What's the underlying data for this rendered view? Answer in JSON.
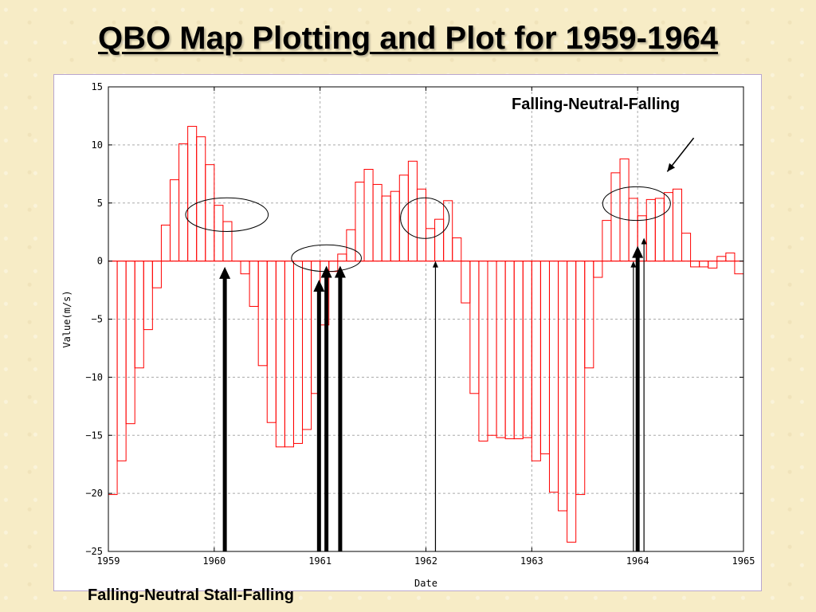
{
  "slide": {
    "title": "QBO Map Plotting and Plot for 1959-1964"
  },
  "annotations": {
    "top_caption": "Falling-Neutral-Falling",
    "bottom_caption": "Falling-Neutral Stall-Falling"
  },
  "chart_data": {
    "type": "bar",
    "title": "",
    "xlabel": "Date",
    "ylabel": "Value(m/s)",
    "x_start": 1959.0,
    "x_step": 0.0833333,
    "xlim": [
      1959,
      1965
    ],
    "ylim": [
      -25,
      15
    ],
    "x_ticks": [
      1959,
      1960,
      1961,
      1962,
      1963,
      1964,
      1965
    ],
    "y_ticks": [
      -25,
      -20,
      -15,
      -10,
      -5,
      0,
      5,
      10,
      15
    ],
    "grid": true,
    "bar_color": "#ff0000",
    "values": [
      -20.1,
      -17.2,
      -14.0,
      -9.2,
      -5.9,
      -2.3,
      3.1,
      7.0,
      10.1,
      11.6,
      10.7,
      8.3,
      4.8,
      3.4,
      0.0,
      -1.1,
      -3.9,
      -9.0,
      -13.9,
      -16.0,
      -16.0,
      -15.7,
      -14.5,
      -11.4,
      -5.5,
      -0.9,
      0.6,
      2.7,
      6.8,
      7.9,
      6.6,
      5.6,
      6.0,
      7.4,
      8.6,
      6.2,
      2.8,
      3.6,
      5.2,
      2.0,
      -3.6,
      -11.4,
      -15.5,
      -15.0,
      -15.2,
      -15.3,
      -15.3,
      -15.2,
      -17.2,
      -16.6,
      -19.9,
      -21.5,
      -24.2,
      -20.1,
      -9.2,
      -1.4,
      3.5,
      7.6,
      8.8,
      5.4,
      3.9,
      5.3,
      5.4,
      5.9,
      6.2,
      2.4,
      -0.5,
      -0.5,
      -0.6,
      0.4,
      0.7,
      -1.1
    ]
  },
  "markers": {
    "arrows": [
      {
        "x": 1960.1,
        "y_from": -25,
        "y_to": -0.5,
        "weight": "bold"
      },
      {
        "x": 1960.99,
        "y_from": -25,
        "y_to": -1.6,
        "weight": "bold"
      },
      {
        "x": 1961.06,
        "y_from": -25,
        "y_to": -0.4,
        "weight": "bold"
      },
      {
        "x": 1961.19,
        "y_from": -25,
        "y_to": -0.4,
        "weight": "bold"
      },
      {
        "x": 1962.09,
        "y_from": -25,
        "y_to": 0.0,
        "weight": "thin"
      },
      {
        "x": 1963.96,
        "y_from": -25,
        "y_to": 0.0,
        "weight": "thin"
      },
      {
        "x": 1964.0,
        "y_from": -25,
        "y_to": 1.3,
        "weight": "bold"
      },
      {
        "x": 1964.06,
        "y_from": -25,
        "y_to": 2.0,
        "weight": "thin"
      }
    ],
    "ellipses": [
      {
        "cx": 1960.12,
        "cy": 4.0,
        "rx": 0.39,
        "ry": 1.45
      },
      {
        "cx": 1961.06,
        "cy": 0.25,
        "rx": 0.33,
        "ry": 1.15
      },
      {
        "cx": 1961.99,
        "cy": 3.7,
        "rx": 0.23,
        "ry": 1.75
      },
      {
        "cx": 1963.99,
        "cy": 4.95,
        "rx": 0.32,
        "ry": 1.45
      }
    ],
    "pointer": {
      "x1": 1964.53,
      "y1": 10.6,
      "x2": 1964.28,
      "y2": 7.7
    }
  }
}
